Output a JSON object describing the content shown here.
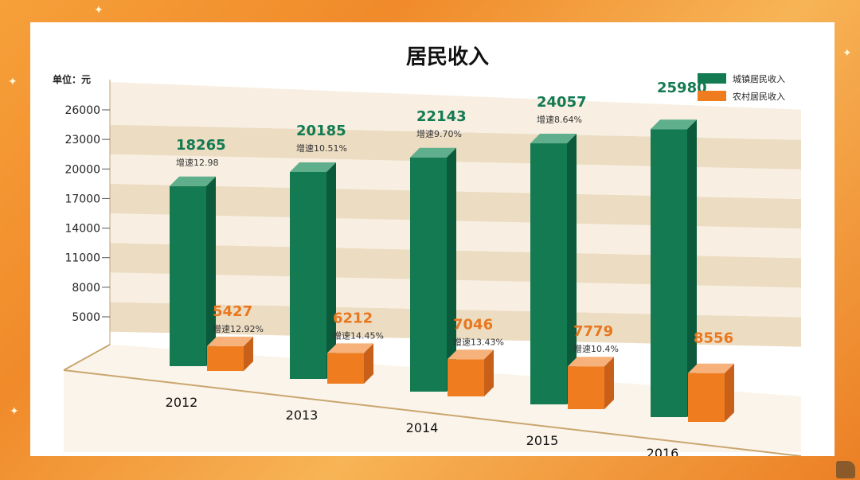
{
  "chart_data": {
    "type": "bar",
    "title": "居民收入",
    "unit_label": "单位：元",
    "categories": [
      "2012",
      "2013",
      "2014",
      "2015",
      "2016"
    ],
    "yticks": [
      5000,
      8000,
      11000,
      14000,
      17000,
      20000,
      23000,
      26000
    ],
    "ylim": [
      2000,
      26000
    ],
    "grid": true,
    "legend_position": "top-right",
    "series": [
      {
        "name": "城镇居民收入",
        "color": "#137a52",
        "values": [
          18265,
          20185,
          22143,
          24057,
          25980
        ],
        "value_labels": [
          "18265",
          "20185",
          "22143",
          "24057",
          "25980"
        ],
        "growth_labels": [
          "增速12.98",
          "增速10.51%",
          "增速9.70%",
          "增速8.64%",
          ""
        ]
      },
      {
        "name": "农村居民收入",
        "color": "#ef7d1f",
        "values": [
          5427,
          6212,
          7046,
          7779,
          8556
        ],
        "value_labels": [
          "5427",
          "6212",
          "7046",
          "7779",
          "8556"
        ],
        "growth_labels": [
          "增速12.92%",
          "增速14.45%",
          "增速13.43%",
          "增速10.4%",
          ""
        ]
      }
    ]
  },
  "colors": {
    "urban_front": "#137a52",
    "urban_side": "#0b5a3b",
    "urban_top": "#5fae8c",
    "rural_front": "#ef7d1f",
    "rural_side": "#c9601a",
    "rural_top": "#f6b27a",
    "band_dark": "#ecdcc2",
    "band_light": "#f8efe2",
    "urban_label": "#137a52",
    "rural_label": "#e9771e"
  }
}
